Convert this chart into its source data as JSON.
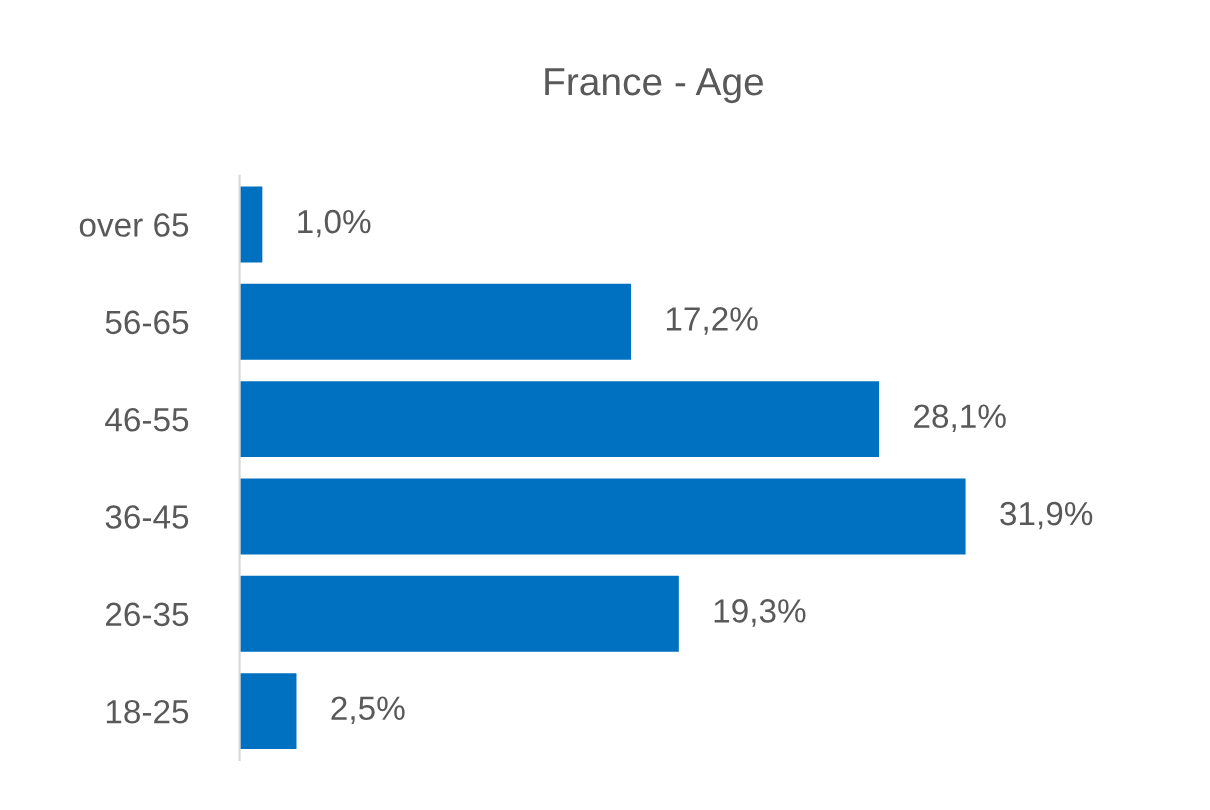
{
  "chart_data": {
    "type": "bar",
    "orientation": "horizontal",
    "title": "France - Age",
    "categories": [
      "over 65",
      "56-65",
      "46-55",
      "36-45",
      "26-35",
      "18-25"
    ],
    "values": [
      1.0,
      17.2,
      28.1,
      31.9,
      19.3,
      2.5
    ],
    "value_labels": [
      "1,0%",
      "17,2%",
      "28,1%",
      "31,9%",
      "19,3%",
      "2,5%"
    ],
    "color": "#0070c0",
    "grid": false,
    "legend": false
  }
}
